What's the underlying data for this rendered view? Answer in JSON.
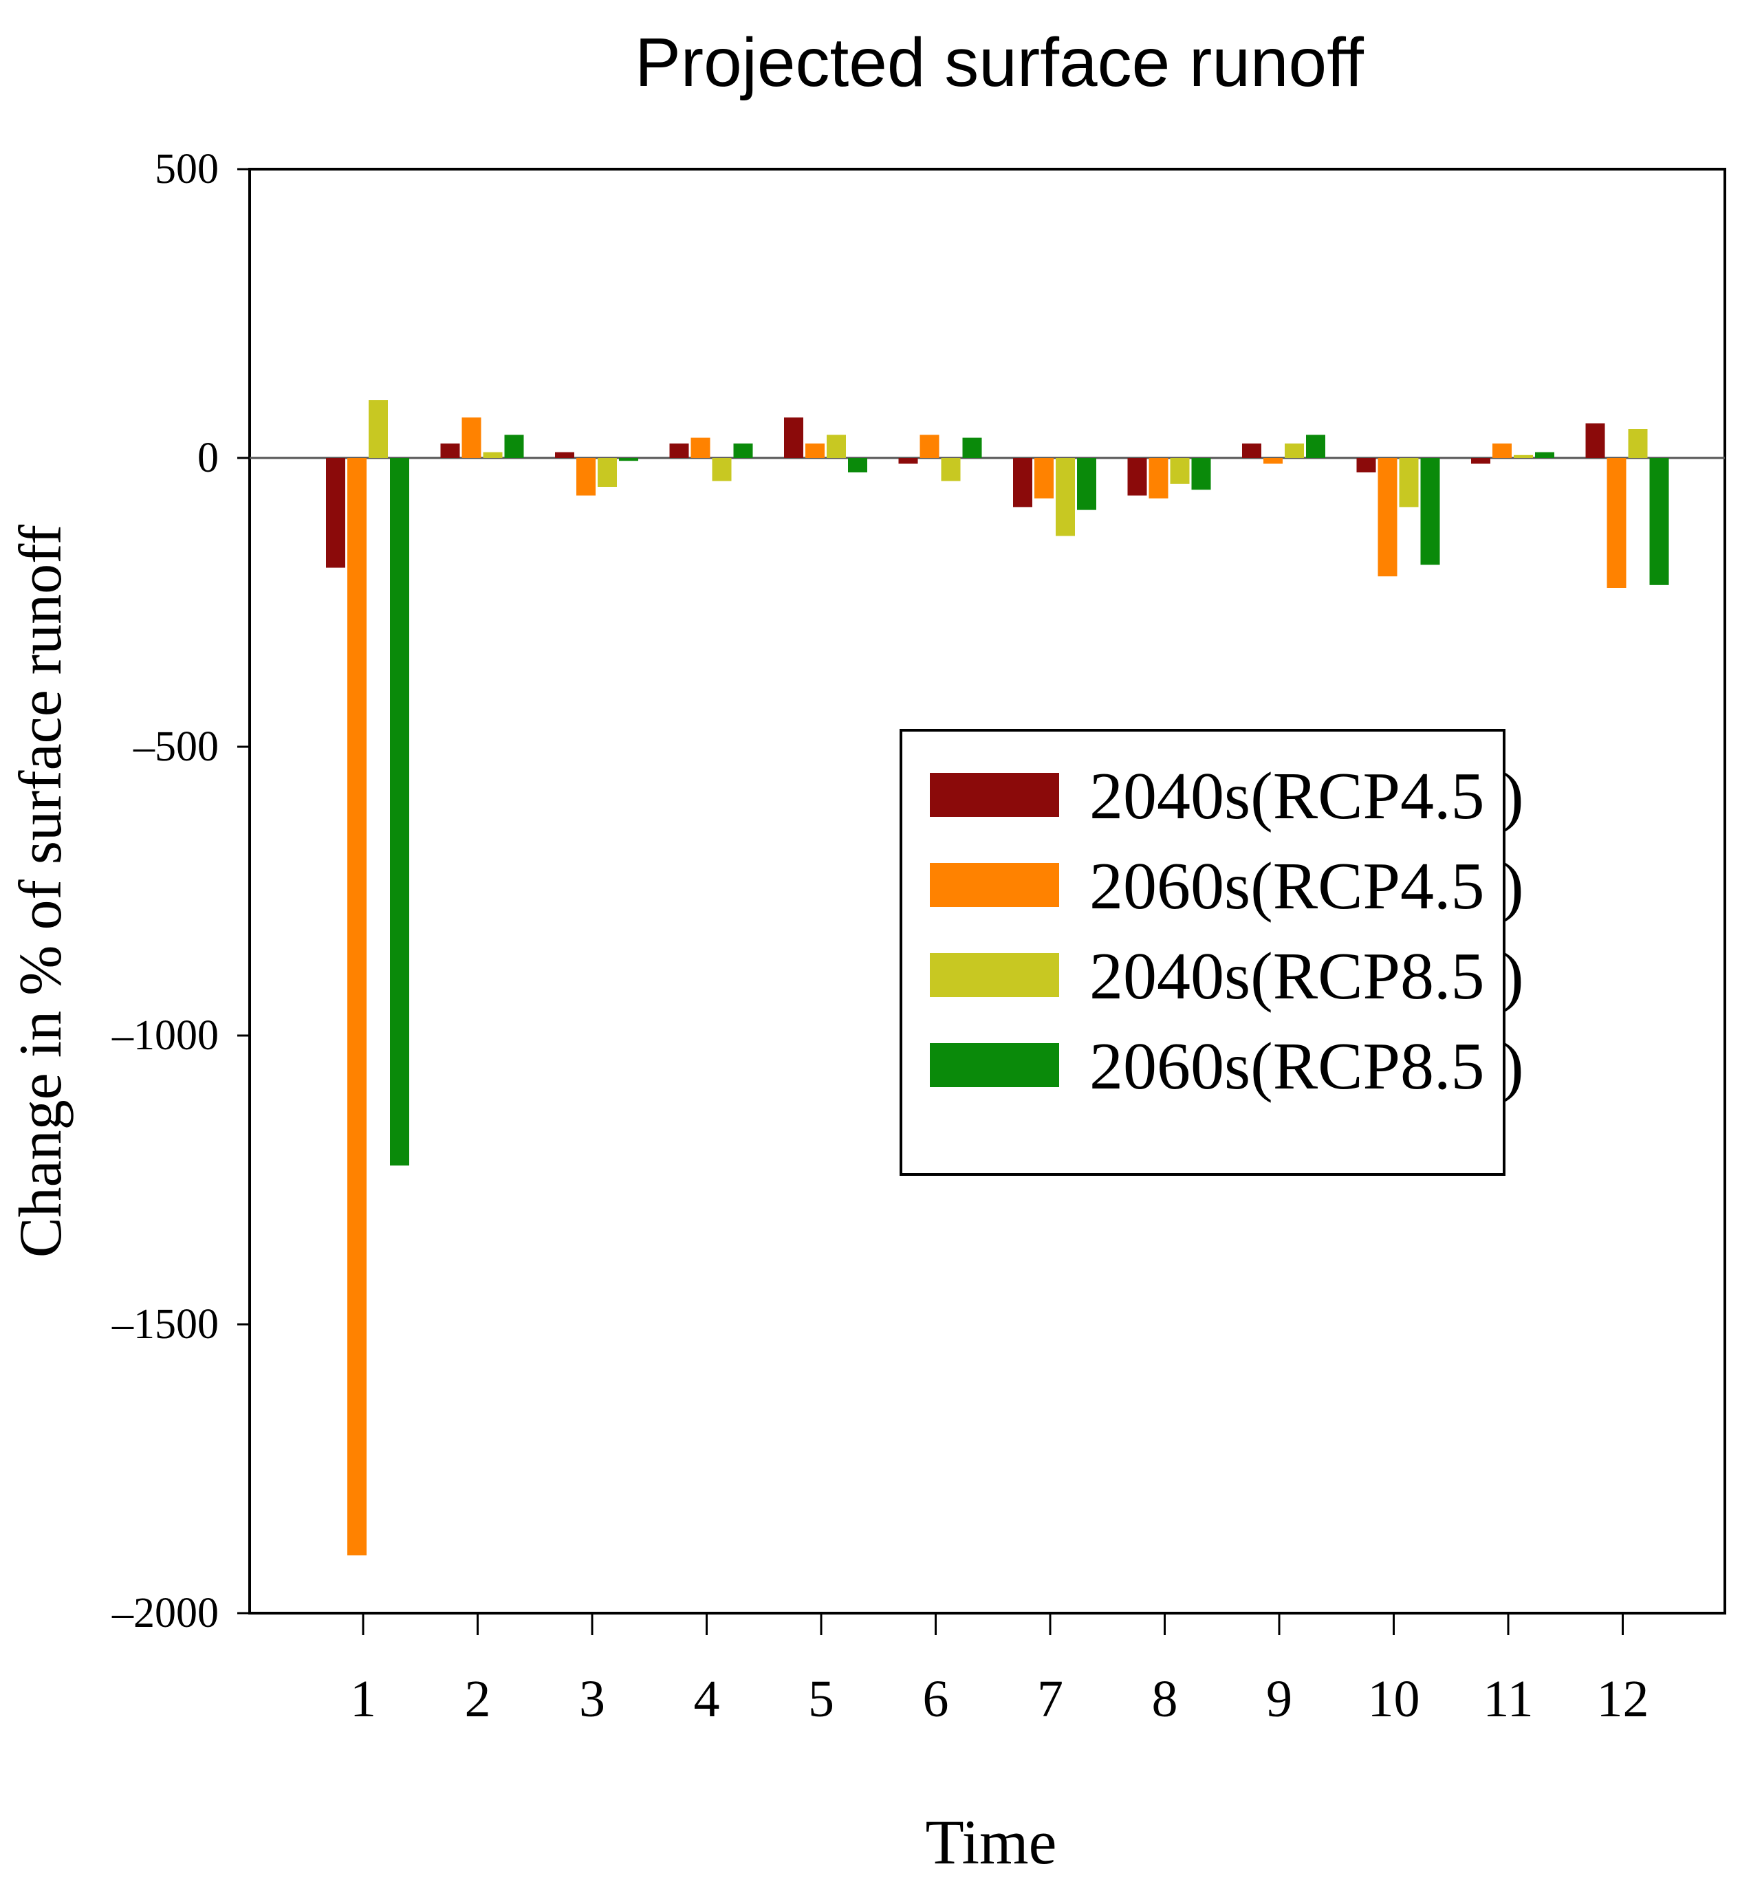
{
  "chart_data": {
    "type": "bar",
    "title": "Projected surface runoff",
    "xlabel": "Time",
    "ylabel": "Change in % of surface runoff",
    "categories": [
      "1",
      "2",
      "3",
      "4",
      "5",
      "6",
      "7",
      "8",
      "9",
      "10",
      "11",
      "12"
    ],
    "ylim": [
      -2000,
      500
    ],
    "yticks": [
      500,
      0,
      -500,
      -1000,
      -1500,
      -2000
    ],
    "ytick_labels": [
      "500",
      "0",
      "–500",
      "–1000",
      "–1500",
      "–2000"
    ],
    "legend_position": "center-right",
    "grid": false,
    "series": [
      {
        "name": "2040s(RCP4.5 )",
        "color": "#8B0A0A",
        "values": [
          -190,
          25,
          10,
          25,
          70,
          -10,
          -85,
          -65,
          25,
          -25,
          -10,
          60
        ]
      },
      {
        "name": "2060s(RCP4.5 )",
        "color": "#FF8200",
        "values": [
          -1900,
          70,
          -65,
          35,
          25,
          40,
          -70,
          -70,
          -10,
          -205,
          25,
          -225
        ]
      },
      {
        "name": "2040s(RCP8.5 )",
        "color": "#C8C822",
        "values": [
          100,
          10,
          -50,
          -40,
          40,
          -40,
          -135,
          -45,
          25,
          -85,
          5,
          50
        ]
      },
      {
        "name": "2060s(RCP8.5 )",
        "color": "#0A8A0A",
        "values": [
          -1225,
          40,
          -5,
          25,
          -25,
          35,
          -90,
          -55,
          40,
          -185,
          10,
          -220
        ]
      }
    ]
  }
}
